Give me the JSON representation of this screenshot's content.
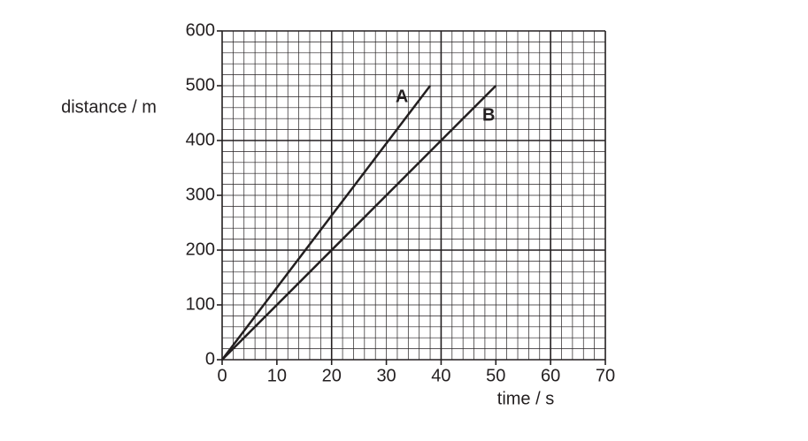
{
  "chart_data": {
    "type": "line",
    "x_label": "time / s",
    "y_label": "distance / m",
    "xlim": [
      0,
      70
    ],
    "ylim": [
      0,
      600
    ],
    "xticks": [
      0,
      10,
      20,
      30,
      40,
      50,
      60,
      70
    ],
    "yticks": [
      0,
      100,
      200,
      300,
      400,
      500,
      600
    ],
    "grid": {
      "minor_x": 2,
      "minor_y": 20,
      "major_x": 20,
      "major_y": 200
    },
    "series": [
      {
        "name": "A",
        "color": "#231f20",
        "x": [
          0,
          38
        ],
        "values": [
          0,
          500
        ]
      },
      {
        "name": "B",
        "color": "#231f20",
        "x": [
          0,
          50
        ],
        "values": [
          0,
          500
        ]
      }
    ]
  }
}
